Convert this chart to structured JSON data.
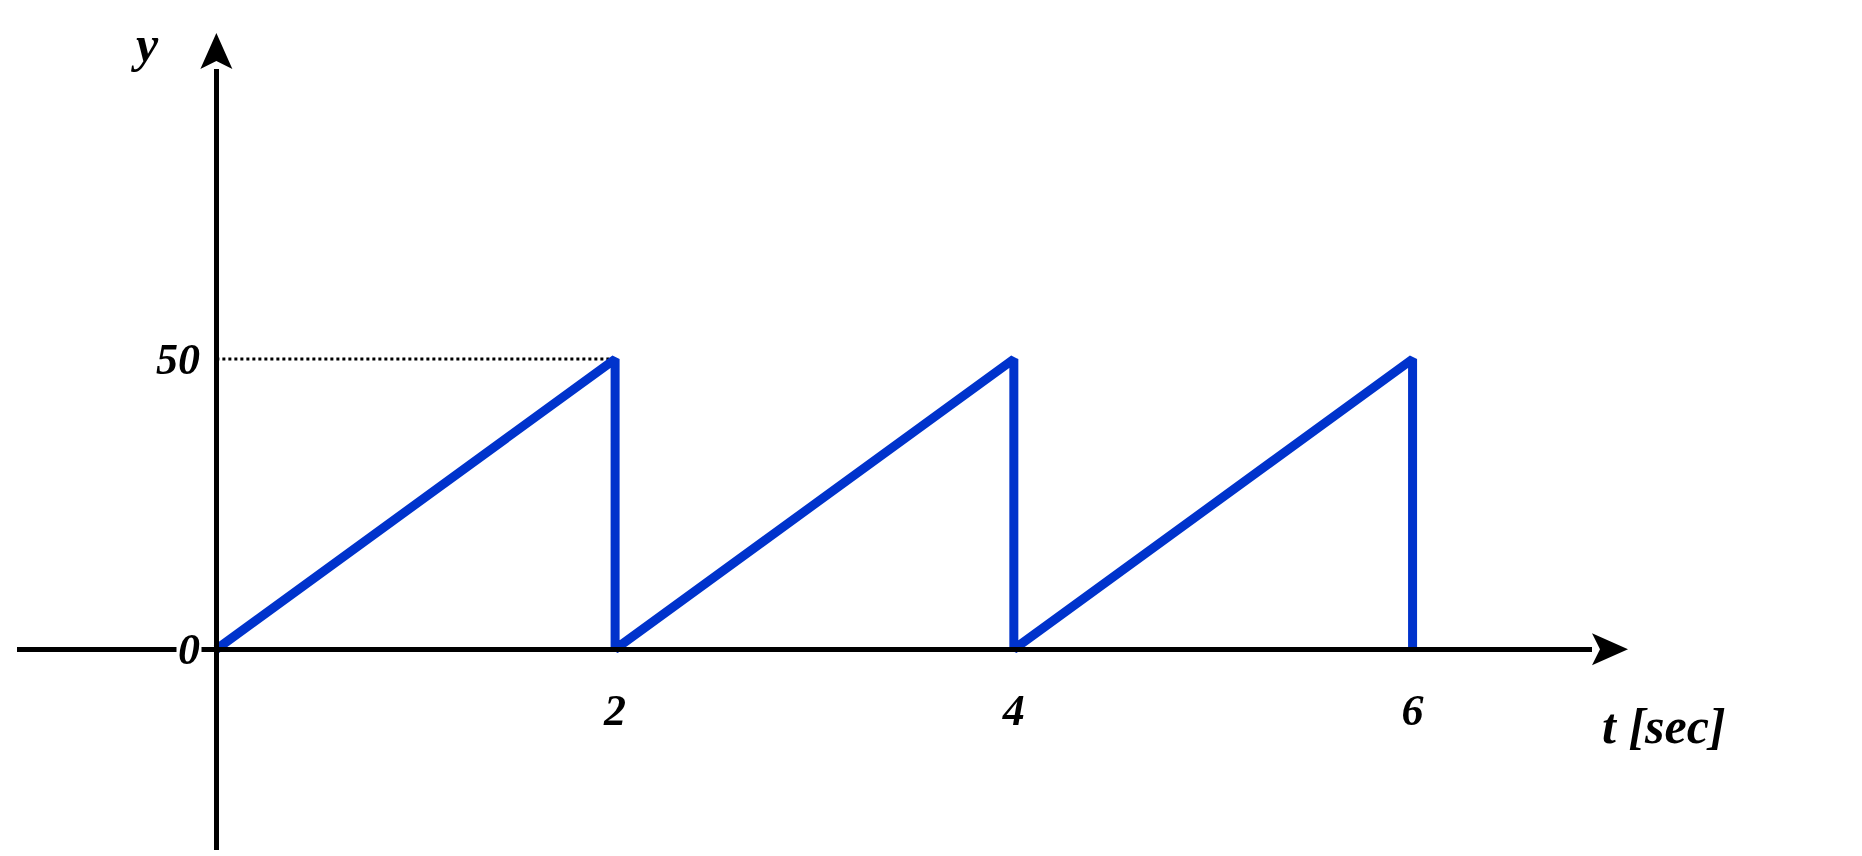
{
  "chart_data": {
    "type": "line",
    "xlabel": "t [sec]",
    "ylabel": "y",
    "x": [
      0,
      2,
      2,
      4,
      4,
      6,
      6
    ],
    "series": [
      {
        "color": "#0033cc",
        "values": [
          0,
          50,
          0,
          50,
          0,
          50,
          0
        ]
      }
    ],
    "xlim": [
      -1,
      6.9
    ],
    "ylim": [
      -34.6,
      100
    ],
    "xticks": [
      2,
      4,
      6
    ],
    "yticks": [
      0,
      50
    ],
    "ref_lines": [
      {
        "axis": "y",
        "value": 50,
        "line_style": "dotted",
        "color": "#000000"
      }
    ],
    "grid": false,
    "marker": "none",
    "line_style": "solid"
  }
}
